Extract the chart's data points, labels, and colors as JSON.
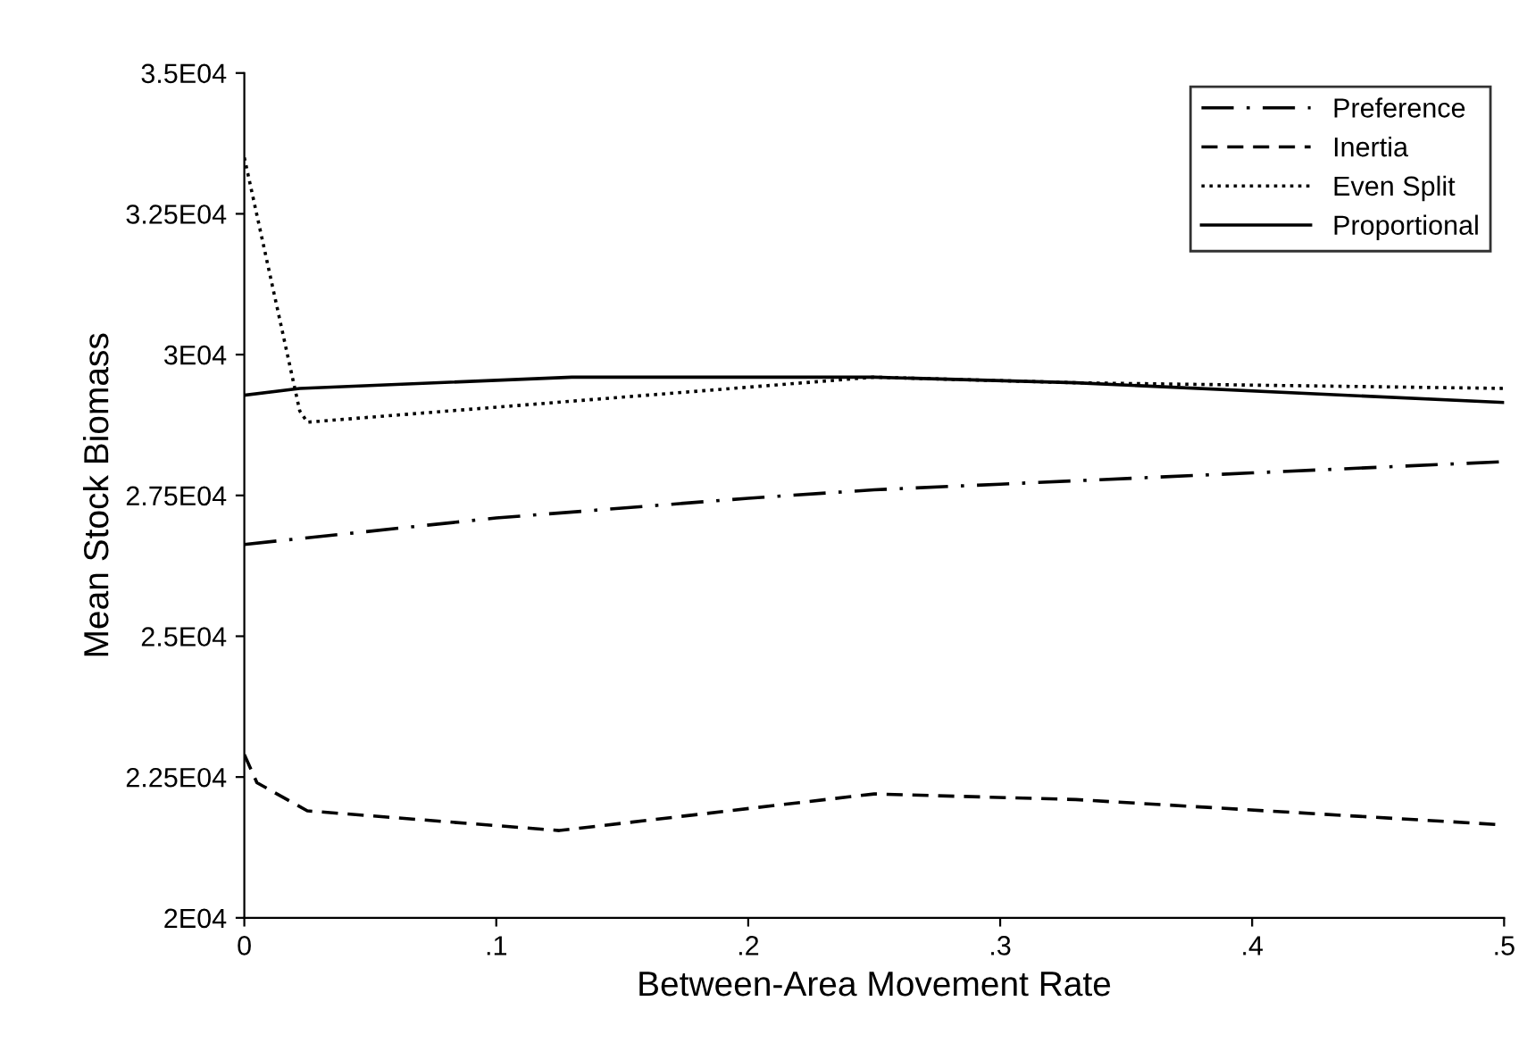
{
  "chart_data": {
    "type": "line",
    "xlabel": "Between-Area Movement Rate",
    "ylabel": "Mean Stock Biomass",
    "xlim": [
      0,
      0.5
    ],
    "xticks": [
      {
        "value": 0,
        "label": "0"
      },
      {
        "value": 0.1,
        "label": ".1"
      },
      {
        "value": 0.2,
        "label": ".2"
      },
      {
        "value": 0.3,
        "label": ".3"
      },
      {
        "value": 0.4,
        "label": ".4"
      },
      {
        "value": 0.5,
        "label": ".5"
      }
    ],
    "ylim": [
      20000,
      35000
    ],
    "yticks": [
      {
        "value": 20000,
        "label": "2E04"
      },
      {
        "value": 22500,
        "label": "2.25E04"
      },
      {
        "value": 25000,
        "label": "2.5E04"
      },
      {
        "value": 27500,
        "label": "2.75E04"
      },
      {
        "value": 30000,
        "label": "3E04"
      },
      {
        "value": 32500,
        "label": "3.25E04"
      },
      {
        "value": 35000,
        "label": "3.5E04"
      }
    ],
    "grid": false,
    "legend": "top right",
    "marker": "none",
    "series": [
      {
        "name": "Preference",
        "color": "#000000",
        "line_style": "dashdot",
        "x": [
          0,
          0.1,
          0.2,
          0.25,
          0.3,
          0.4,
          0.5
        ],
        "values": [
          26630,
          27100,
          27450,
          27600,
          27700,
          27900,
          28100
        ]
      },
      {
        "name": "Inertia",
        "color": "#000000",
        "line_style": "dashed",
        "x": [
          0,
          0.005,
          0.025,
          0.125,
          0.25,
          0.33,
          0.5
        ],
        "values": [
          22900,
          22400,
          21900,
          21550,
          22200,
          22100,
          21650
        ]
      },
      {
        "name": "Even Split",
        "color": "#000000",
        "line_style": "dotted",
        "x": [
          0,
          0.022,
          0.025,
          0.25,
          0.33,
          0.5
        ],
        "values": [
          33500,
          29000,
          28800,
          29600,
          29500,
          29400
        ]
      },
      {
        "name": "Proportional",
        "color": "#000000",
        "line_style": "solid",
        "x": [
          0,
          0.022,
          0.13,
          0.25,
          0.33,
          0.5
        ],
        "values": [
          29280,
          29400,
          29600,
          29600,
          29500,
          29150
        ]
      }
    ]
  }
}
